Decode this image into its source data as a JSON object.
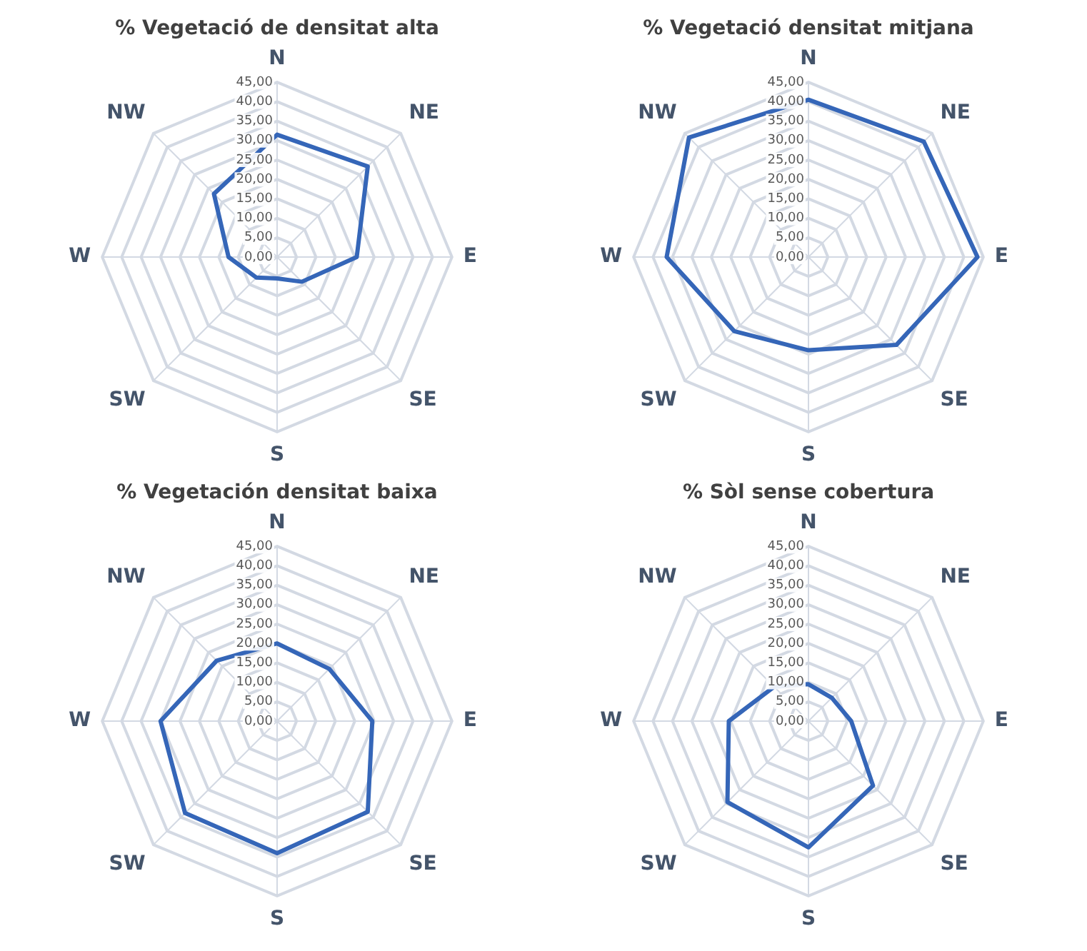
{
  "chart_data": [
    {
      "type": "radar",
      "title": "% Vegetació de densitat alta",
      "categories": [
        "N",
        "NE",
        "E",
        "SE",
        "S",
        "SW",
        "W",
        "NW"
      ],
      "series": [
        {
          "color": "#3566b8",
          "values": [
            31.5,
            33,
            20.5,
            9,
            5.5,
            7.5,
            12.5,
            23
          ]
        }
      ],
      "ylim": [
        0,
        45
      ],
      "yticks": [
        {
          "value": 0,
          "label": "0,00"
        },
        {
          "value": 5,
          "label": "5,00"
        },
        {
          "value": 10,
          "label": "10,00"
        },
        {
          "value": 15,
          "label": "15,00"
        },
        {
          "value": 20,
          "label": "20,00"
        },
        {
          "value": 25,
          "label": "25,00"
        },
        {
          "value": 30,
          "label": "30,00"
        },
        {
          "value": 35,
          "label": "35,00"
        },
        {
          "value": 40,
          "label": "40,00"
        },
        {
          "value": 45,
          "label": "45,00"
        }
      ],
      "grid": true,
      "marker": "none"
    },
    {
      "type": "radar",
      "title": "% Vegetació densitat mitjana",
      "categories": [
        "N",
        "NE",
        "E",
        "SE",
        "S",
        "SW",
        "W",
        "NW"
      ],
      "series": [
        {
          "color": "#3566b8",
          "values": [
            40.5,
            42,
            43.5,
            32,
            24,
            27,
            36.5,
            43.5
          ]
        }
      ],
      "ylim": [
        0,
        45
      ],
      "yticks": [
        {
          "value": 0,
          "label": "0,00"
        },
        {
          "value": 5,
          "label": "5,00"
        },
        {
          "value": 10,
          "label": "10,00"
        },
        {
          "value": 15,
          "label": "15,00"
        },
        {
          "value": 20,
          "label": "20,00"
        },
        {
          "value": 25,
          "label": "25,00"
        },
        {
          "value": 30,
          "label": "30,00"
        },
        {
          "value": 35,
          "label": "35,00"
        },
        {
          "value": 40,
          "label": "40,00"
        },
        {
          "value": 45,
          "label": "45,00"
        }
      ],
      "grid": true,
      "marker": "none"
    },
    {
      "type": "radar",
      "title": "% Vegetación densitat baixa",
      "categories": [
        "N",
        "NE",
        "E",
        "SE",
        "S",
        "SW",
        "W",
        "NW"
      ],
      "series": [
        {
          "color": "#3566b8",
          "values": [
            20,
            19,
            24.5,
            33,
            34,
            33.5,
            30,
            22
          ]
        }
      ],
      "ylim": [
        0,
        45
      ],
      "yticks": [
        {
          "value": 0,
          "label": "0,00"
        },
        {
          "value": 5,
          "label": "5,00"
        },
        {
          "value": 10,
          "label": "10,00"
        },
        {
          "value": 15,
          "label": "15,00"
        },
        {
          "value": 20,
          "label": "20,00"
        },
        {
          "value": 25,
          "label": "25,00"
        },
        {
          "value": 30,
          "label": "30,00"
        },
        {
          "value": 35,
          "label": "35,00"
        },
        {
          "value": 40,
          "label": "40,00"
        },
        {
          "value": 45,
          "label": "45,00"
        }
      ],
      "grid": true,
      "marker": "none"
    },
    {
      "type": "radar",
      "title": "% Sòl sense cobertura",
      "categories": [
        "N",
        "NE",
        "E",
        "SE",
        "S",
        "SW",
        "W",
        "NW"
      ],
      "series": [
        {
          "color": "#3566b8",
          "values": [
            9.5,
            8.5,
            11,
            23.5,
            32.5,
            29.5,
            20.5,
            12.5
          ]
        }
      ],
      "ylim": [
        0,
        45
      ],
      "yticks": [
        {
          "value": 0,
          "label": "0,00"
        },
        {
          "value": 5,
          "label": "5,00"
        },
        {
          "value": 10,
          "label": "10,00"
        },
        {
          "value": 15,
          "label": "15,00"
        },
        {
          "value": 20,
          "label": "20,00"
        },
        {
          "value": 25,
          "label": "25,00"
        },
        {
          "value": 30,
          "label": "30,00"
        },
        {
          "value": 35,
          "label": "35,00"
        },
        {
          "value": 40,
          "label": "40,00"
        },
        {
          "value": 45,
          "label": "45,00"
        }
      ],
      "grid": true,
      "marker": "none"
    }
  ]
}
